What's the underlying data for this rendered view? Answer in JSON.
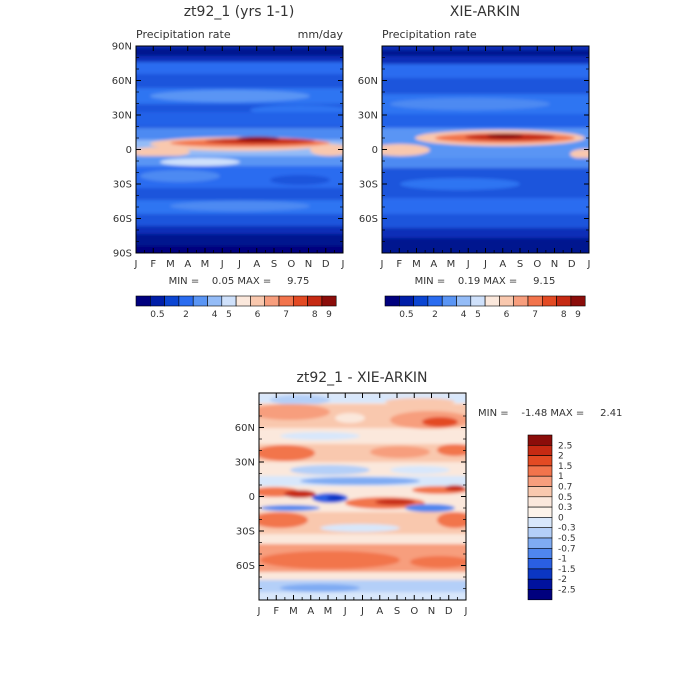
{
  "chart_data": [
    {
      "type": "heatmap",
      "title": "zt92_1 (yrs 1-1)",
      "subtitle_left": "Precipitation rate",
      "subtitle_right": "mm/day",
      "x_ticks": [
        "J",
        "F",
        "M",
        "A",
        "M",
        "J",
        "J",
        "A",
        "S",
        "O",
        "N",
        "D",
        "J"
      ],
      "y_ticks": [
        "90N",
        "60N",
        "30N",
        "0",
        "30S",
        "60S",
        "90S"
      ],
      "stats": "MIN =    0.05 MAX =     9.75",
      "colorbar_labels": [
        "0.5",
        "2",
        "4",
        "5",
        "6",
        "7",
        "8",
        "9"
      ],
      "colorbar_colors": [
        "#00007e",
        "#001ea8",
        "#0b45d2",
        "#2a6cf0",
        "#5a95f4",
        "#94bcf7",
        "#cfe1fb",
        "#fbe8dc",
        "#f9c8ae",
        "#f79e7d",
        "#f2744c",
        "#e34a23",
        "#c62a13",
        "#8b0d0a"
      ],
      "ylim": [
        -90,
        90
      ]
    },
    {
      "type": "heatmap",
      "title": "XIE-ARKIN",
      "subtitle_left": "Precipitation rate",
      "x_ticks": [
        "J",
        "F",
        "M",
        "A",
        "M",
        "J",
        "J",
        "A",
        "S",
        "O",
        "N",
        "D",
        "J"
      ],
      "y_ticks": [
        "60N",
        "30N",
        "0",
        "30S",
        "60S"
      ],
      "stats": "MIN =    0.19 MAX =     9.15",
      "colorbar_labels": [
        "0.5",
        "2",
        "4",
        "5",
        "6",
        "7",
        "8",
        "9"
      ],
      "colorbar_colors": [
        "#00007e",
        "#001ea8",
        "#0b45d2",
        "#2a6cf0",
        "#5a95f4",
        "#94bcf7",
        "#cfe1fb",
        "#fbe8dc",
        "#f9c8ae",
        "#f79e7d",
        "#f2744c",
        "#e34a23",
        "#c62a13",
        "#8b0d0a"
      ],
      "ylim": [
        -90,
        90
      ]
    },
    {
      "type": "heatmap",
      "title": "zt92_1 - XIE-ARKIN",
      "x_ticks": [
        "J",
        "F",
        "M",
        "A",
        "M",
        "J",
        "J",
        "A",
        "S",
        "O",
        "N",
        "D",
        "J"
      ],
      "y_ticks": [
        "60N",
        "30N",
        "0",
        "30S",
        "60S"
      ],
      "stats": "MIN =    -1.48 MAX =     2.41",
      "colorbar_labels": [
        "2.5",
        "2",
        "1.5",
        "1",
        "0.7",
        "0.5",
        "0.3",
        "0",
        "-0.3",
        "-0.5",
        "-0.7",
        "-1",
        "-1.5",
        "-2",
        "-2.5"
      ],
      "colorbar_colors": [
        "#8b0d0a",
        "#c62a13",
        "#e34a23",
        "#f2744c",
        "#f79e7d",
        "#f9c8ae",
        "#fbe8dc",
        "#fdf3ea",
        "#d8e7fb",
        "#b4cff8",
        "#7fabf3",
        "#4f86ee",
        "#2a5fe2",
        "#0b36c4",
        "#00129e",
        "#00007e"
      ],
      "ylim": [
        -90,
        90
      ]
    }
  ]
}
